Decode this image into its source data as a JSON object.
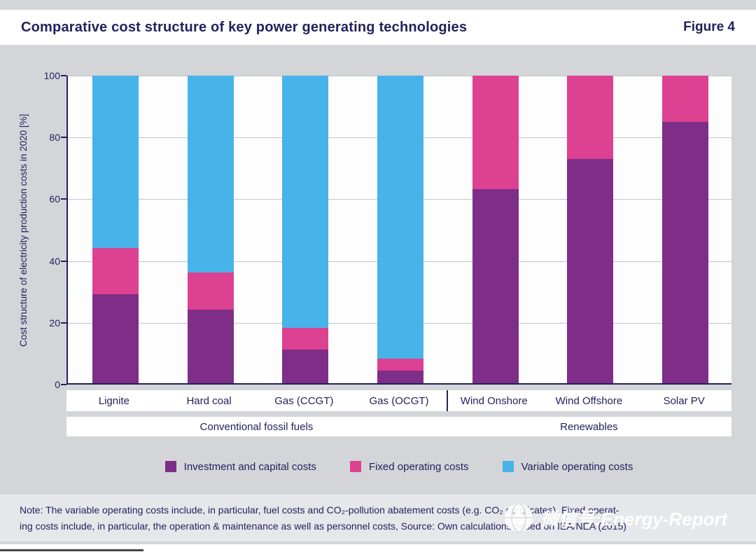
{
  "header": {
    "title": "Comparative cost structure of key power generating technologies",
    "figure_label": "Figure 4"
  },
  "chart_data": {
    "type": "bar",
    "stacked": true,
    "title": "Comparative cost structure of key power generating technologies",
    "xlabel": "",
    "ylabel": "Cost structure of electricity production costs in 2020 [%]",
    "ylim": [
      0,
      100
    ],
    "yticks": [
      0,
      20,
      40,
      60,
      80,
      100
    ],
    "grid": true,
    "legend_position": "bottom",
    "categories": [
      "Lignite",
      "Hard coal",
      "Gas (CCGT)",
      "Gas (OCGT)",
      "Wind Onshore",
      "Wind Offshore",
      "Solar PV"
    ],
    "groups": [
      {
        "label": "Conventional fossil fuels",
        "span": 4
      },
      {
        "label": "Renewables",
        "span": 3
      }
    ],
    "series": [
      {
        "name": "Investment and capital costs",
        "color": "#7e2d88",
        "values": [
          29,
          24,
          11,
          4,
          63,
          73,
          85
        ]
      },
      {
        "name": "Fixed operating costs",
        "color": "#dd4191",
        "values": [
          15,
          12,
          7,
          4,
          37,
          27,
          15
        ]
      },
      {
        "name": "Variable operating costs",
        "color": "#47b3e8",
        "values": [
          56,
          64,
          82,
          92,
          0,
          0,
          0
        ]
      }
    ]
  },
  "note": {
    "line1": "Note: The variable operating costs include, in particular, fuel costs and CO₂-pollution abatement costs (e.g. CO₂ certificates). Fixed operat-",
    "line2": "ing costs include, in particular, the operation & maintenance as well as personnel costs, Source: Own calculations based on IEA/NEA (2015)"
  },
  "watermark": {
    "text": "微信号:Energy-Report"
  },
  "colors": {
    "navy_text": "#22225e",
    "page_background": "#d4d5d9",
    "note_background": "#e6e7ea",
    "plot_background": "#fdfdfe"
  }
}
